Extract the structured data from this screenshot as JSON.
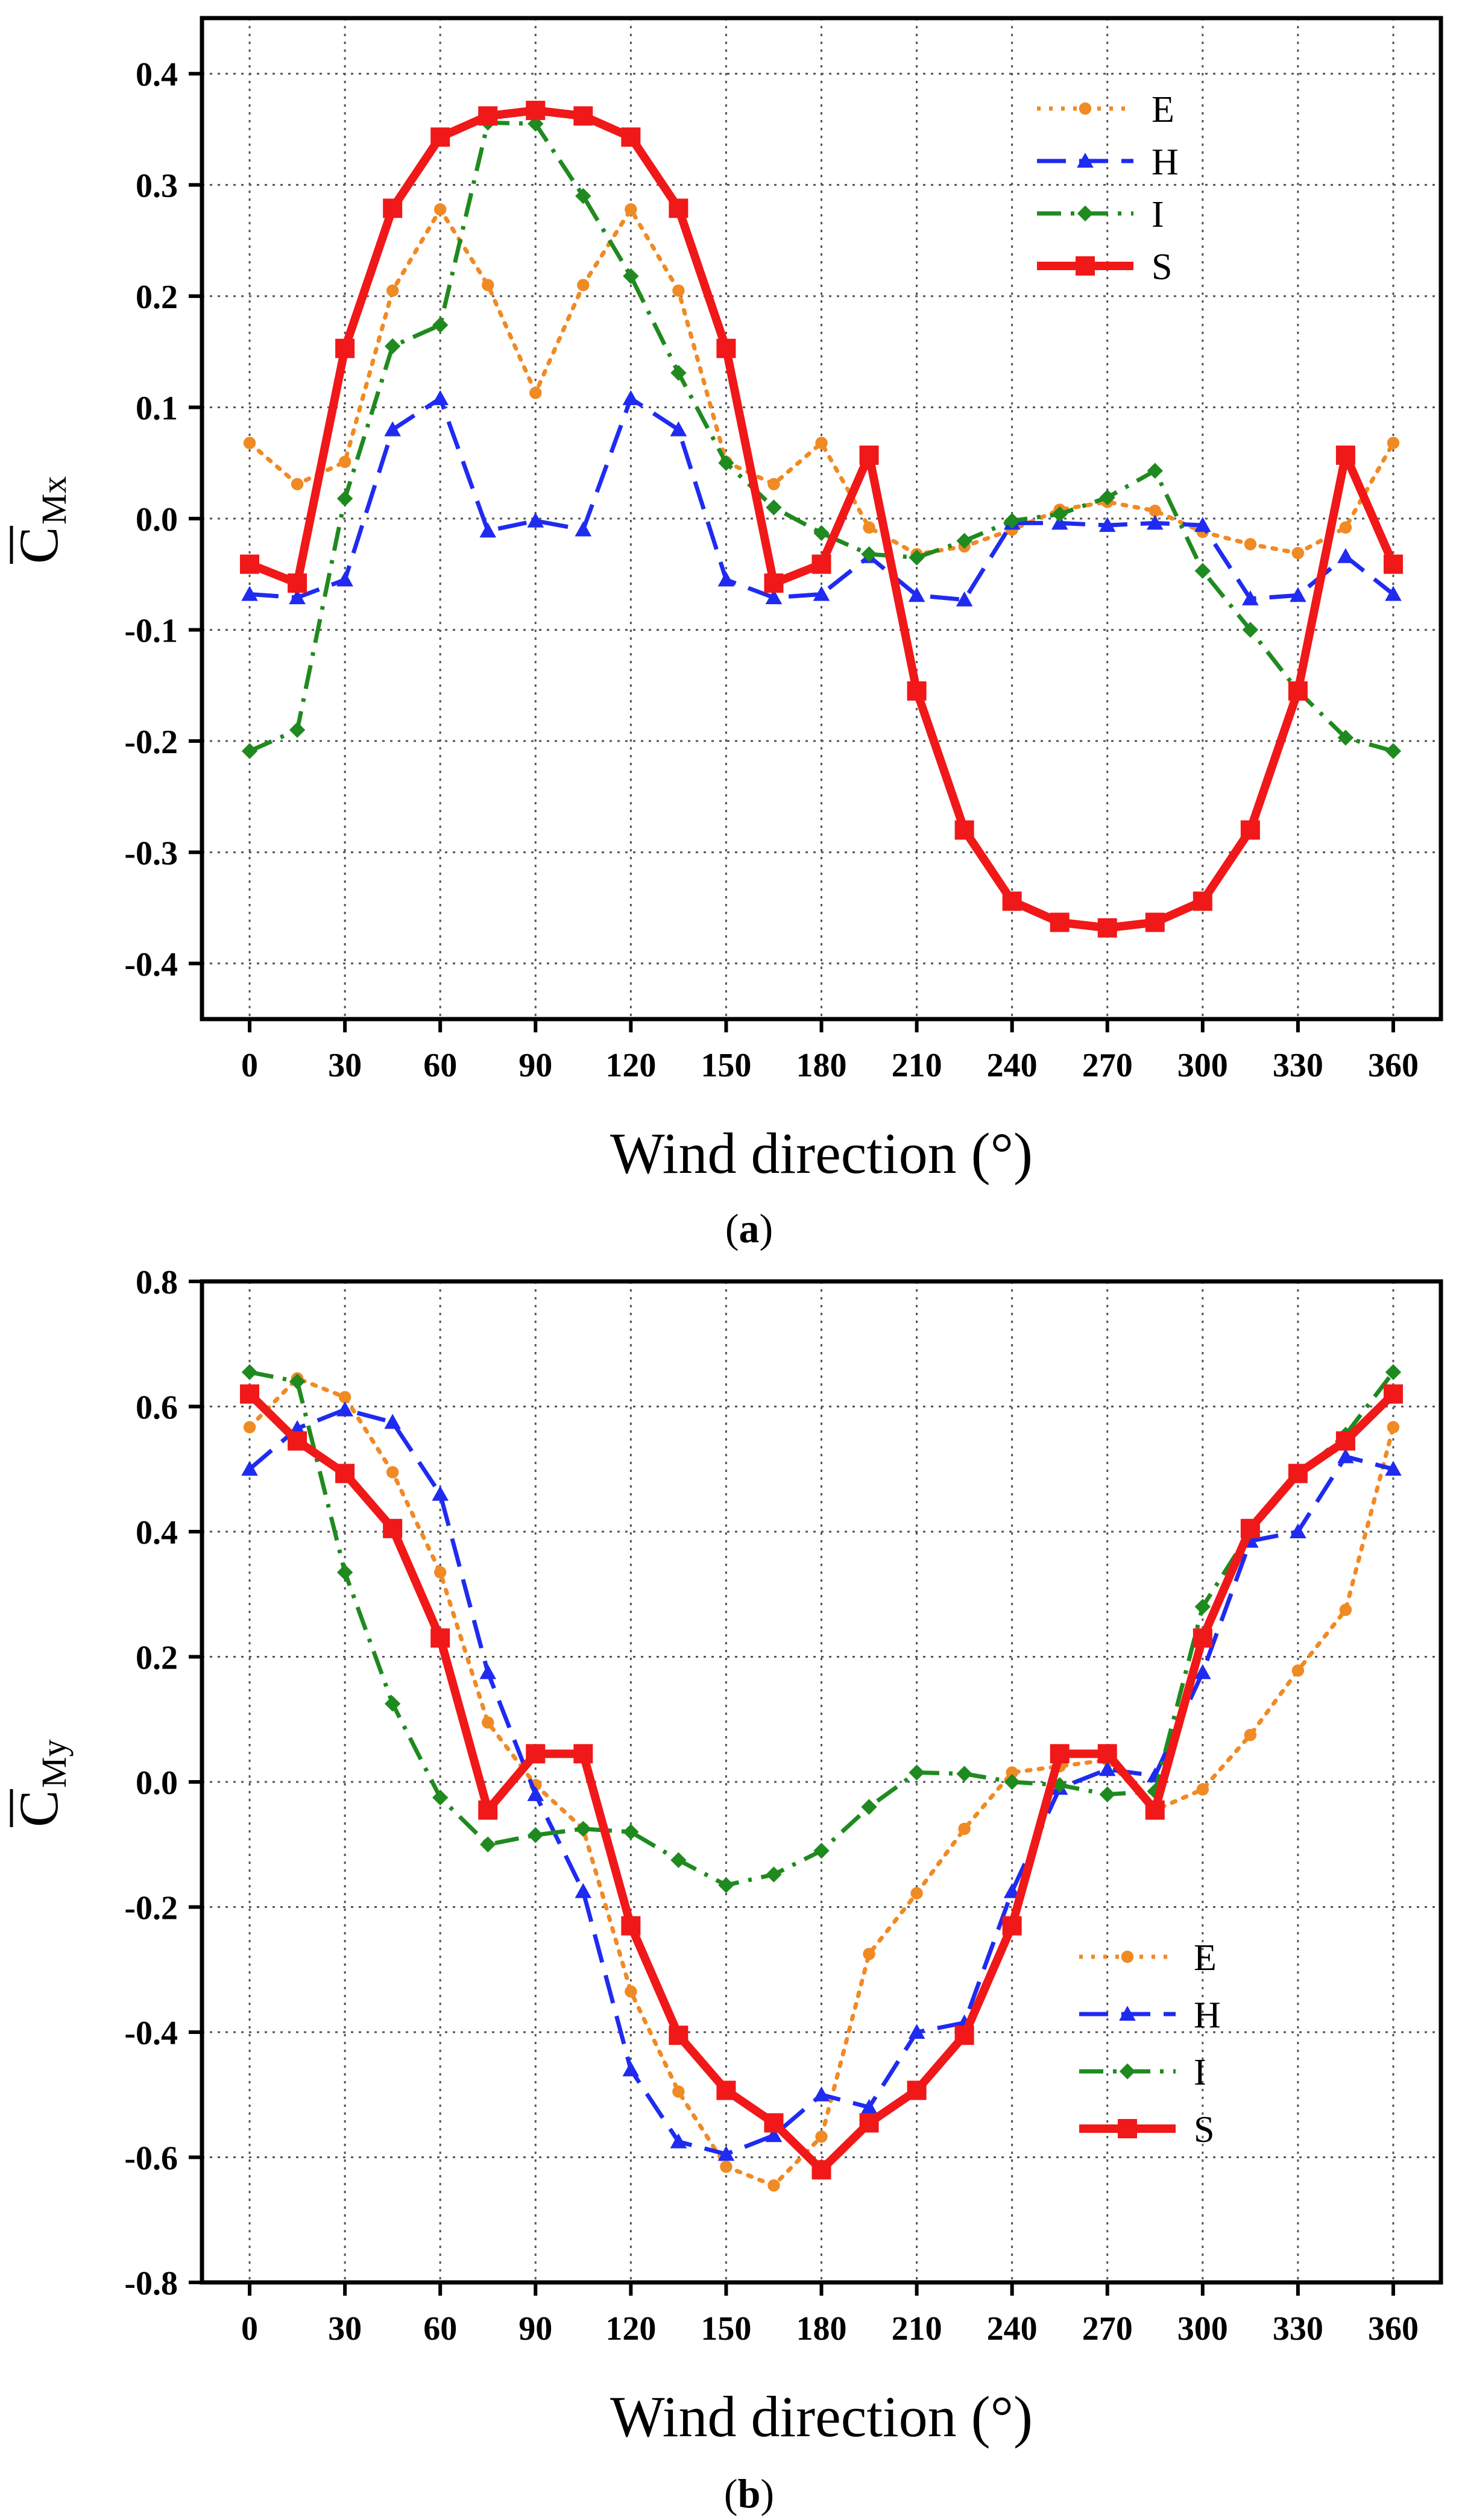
{
  "chart_data": [
    {
      "type": "line",
      "caption_open": "(",
      "caption_letter": "a",
      "caption_close": ")",
      "xlabel": "Wind direction (°)",
      "ylabel_main": "C",
      "ylabel_sub": "Mx",
      "xlim": [
        -15,
        375
      ],
      "ylim": [
        -0.45,
        0.45
      ],
      "xticks": [
        0,
        30,
        60,
        90,
        120,
        150,
        180,
        210,
        240,
        270,
        300,
        330,
        360
      ],
      "xtick_labels": [
        "0",
        "30",
        "60",
        "90",
        "120",
        "150",
        "180",
        "210",
        "240",
        "270",
        "300",
        "330",
        "360"
      ],
      "yticks": [
        -0.4,
        -0.3,
        -0.2,
        -0.1,
        0.0,
        0.1,
        0.2,
        0.3,
        0.4
      ],
      "ytick_labels": [
        "-0.4",
        "-0.3",
        "-0.2",
        "-0.1",
        "0.0",
        "0.1",
        "0.2",
        "0.3",
        "0.4"
      ],
      "legend_position": "top-right",
      "x": [
        0,
        15,
        30,
        45,
        60,
        75,
        90,
        105,
        120,
        135,
        150,
        165,
        180,
        195,
        210,
        225,
        240,
        255,
        270,
        285,
        300,
        315,
        330,
        345,
        360
      ],
      "series": [
        {
          "name": "E",
          "color": "#f08a24",
          "dash": "dot",
          "marker": "circle",
          "values": [
            0.068,
            0.031,
            0.051,
            0.205,
            0.278,
            0.21,
            0.113,
            0.21,
            0.278,
            0.205,
            0.051,
            0.031,
            0.068,
            -0.008,
            -0.032,
            -0.025,
            -0.01,
            0.008,
            0.015,
            0.007,
            -0.012,
            -0.023,
            -0.031,
            -0.008,
            0.068
          ]
        },
        {
          "name": "H",
          "color": "#1f2bf0",
          "dash": "dash",
          "marker": "triangle",
          "values": [
            -0.068,
            -0.071,
            -0.055,
            0.08,
            0.108,
            -0.011,
            -0.002,
            -0.01,
            0.108,
            0.08,
            -0.055,
            -0.071,
            -0.068,
            -0.034,
            -0.069,
            -0.073,
            -0.004,
            -0.004,
            -0.006,
            -0.004,
            -0.006,
            -0.072,
            -0.069,
            -0.034,
            -0.068
          ]
        },
        {
          "name": "I",
          "color": "#1f8a1f",
          "dash": "dashdot",
          "marker": "diamond",
          "values": [
            -0.209,
            -0.19,
            0.018,
            0.155,
            0.174,
            0.356,
            0.355,
            0.29,
            0.218,
            0.131,
            0.05,
            0.01,
            -0.013,
            -0.032,
            -0.035,
            -0.02,
            -0.002,
            0.004,
            0.019,
            0.043,
            -0.047,
            -0.1,
            -0.155,
            -0.197,
            -0.209
          ]
        },
        {
          "name": "S",
          "color": "#f01818",
          "dash": "solid",
          "marker": "square",
          "values": [
            -0.041,
            -0.058,
            0.153,
            0.279,
            0.343,
            0.362,
            0.367,
            0.362,
            0.343,
            0.279,
            0.153,
            -0.058,
            -0.041,
            0.057,
            -0.155,
            -0.28,
            -0.344,
            -0.363,
            -0.368,
            -0.363,
            -0.344,
            -0.28,
            -0.155,
            0.057,
            -0.041
          ]
        }
      ]
    },
    {
      "type": "line",
      "caption_open": "(",
      "caption_letter": "b",
      "caption_close": ")",
      "xlabel": "Wind direction (°)",
      "ylabel_main": "C",
      "ylabel_sub": "My",
      "xlim": [
        -15,
        375
      ],
      "ylim": [
        -0.8,
        0.8
      ],
      "xticks": [
        0,
        30,
        60,
        90,
        120,
        150,
        180,
        210,
        240,
        270,
        300,
        330,
        360
      ],
      "xtick_labels": [
        "0",
        "30",
        "60",
        "90",
        "120",
        "150",
        "180",
        "210",
        "240",
        "270",
        "300",
        "330",
        "360"
      ],
      "yticks": [
        -0.8,
        -0.6,
        -0.4,
        -0.2,
        0.0,
        0.2,
        0.4,
        0.6,
        0.8
      ],
      "ytick_labels": [
        "-0.8",
        "-0.6",
        "-0.4",
        "-0.2",
        "0.0",
        "0.2",
        "0.4",
        "0.6",
        "0.8"
      ],
      "legend_position": "bottom-right",
      "x": [
        0,
        15,
        30,
        45,
        60,
        75,
        90,
        105,
        120,
        135,
        150,
        165,
        180,
        195,
        210,
        225,
        240,
        255,
        270,
        285,
        300,
        315,
        330,
        345,
        360
      ],
      "series": [
        {
          "name": "E",
          "color": "#f08a24",
          "dash": "dot",
          "marker": "circle",
          "values": [
            0.567,
            0.645,
            0.615,
            0.495,
            0.335,
            0.095,
            -0.005,
            -0.075,
            -0.335,
            -0.495,
            -0.615,
            -0.645,
            -0.567,
            -0.275,
            -0.178,
            -0.075,
            0.015,
            0.025,
            0.035,
            -0.045,
            -0.012,
            0.075,
            0.178,
            0.275,
            0.567
          ]
        },
        {
          "name": "H",
          "color": "#1f2bf0",
          "dash": "dash",
          "marker": "triangle",
          "values": [
            0.5,
            0.565,
            0.595,
            0.575,
            0.46,
            0.175,
            -0.02,
            -0.175,
            -0.46,
            -0.575,
            -0.595,
            -0.565,
            -0.5,
            -0.52,
            -0.4,
            -0.385,
            -0.175,
            -0.01,
            0.02,
            0.01,
            0.175,
            0.385,
            0.4,
            0.52,
            0.5
          ]
        },
        {
          "name": "I",
          "color": "#1f8a1f",
          "dash": "dashdot",
          "marker": "diamond",
          "values": [
            0.655,
            0.64,
            0.335,
            0.125,
            -0.025,
            -0.1,
            -0.085,
            -0.075,
            -0.08,
            -0.125,
            -0.165,
            -0.148,
            -0.11,
            -0.04,
            0.015,
            0.013,
            0.0,
            -0.005,
            -0.02,
            -0.015,
            0.28,
            0.4,
            0.49,
            0.555,
            0.655
          ]
        },
        {
          "name": "S",
          "color": "#f01818",
          "dash": "solid",
          "marker": "square",
          "values": [
            0.62,
            0.545,
            0.493,
            0.405,
            0.23,
            -0.045,
            0.045,
            0.045,
            -0.23,
            -0.405,
            -0.493,
            -0.545,
            -0.62,
            -0.545,
            -0.493,
            -0.405,
            -0.23,
            0.045,
            0.045,
            -0.045,
            0.23,
            0.405,
            0.493,
            0.545,
            0.62
          ]
        }
      ]
    }
  ]
}
